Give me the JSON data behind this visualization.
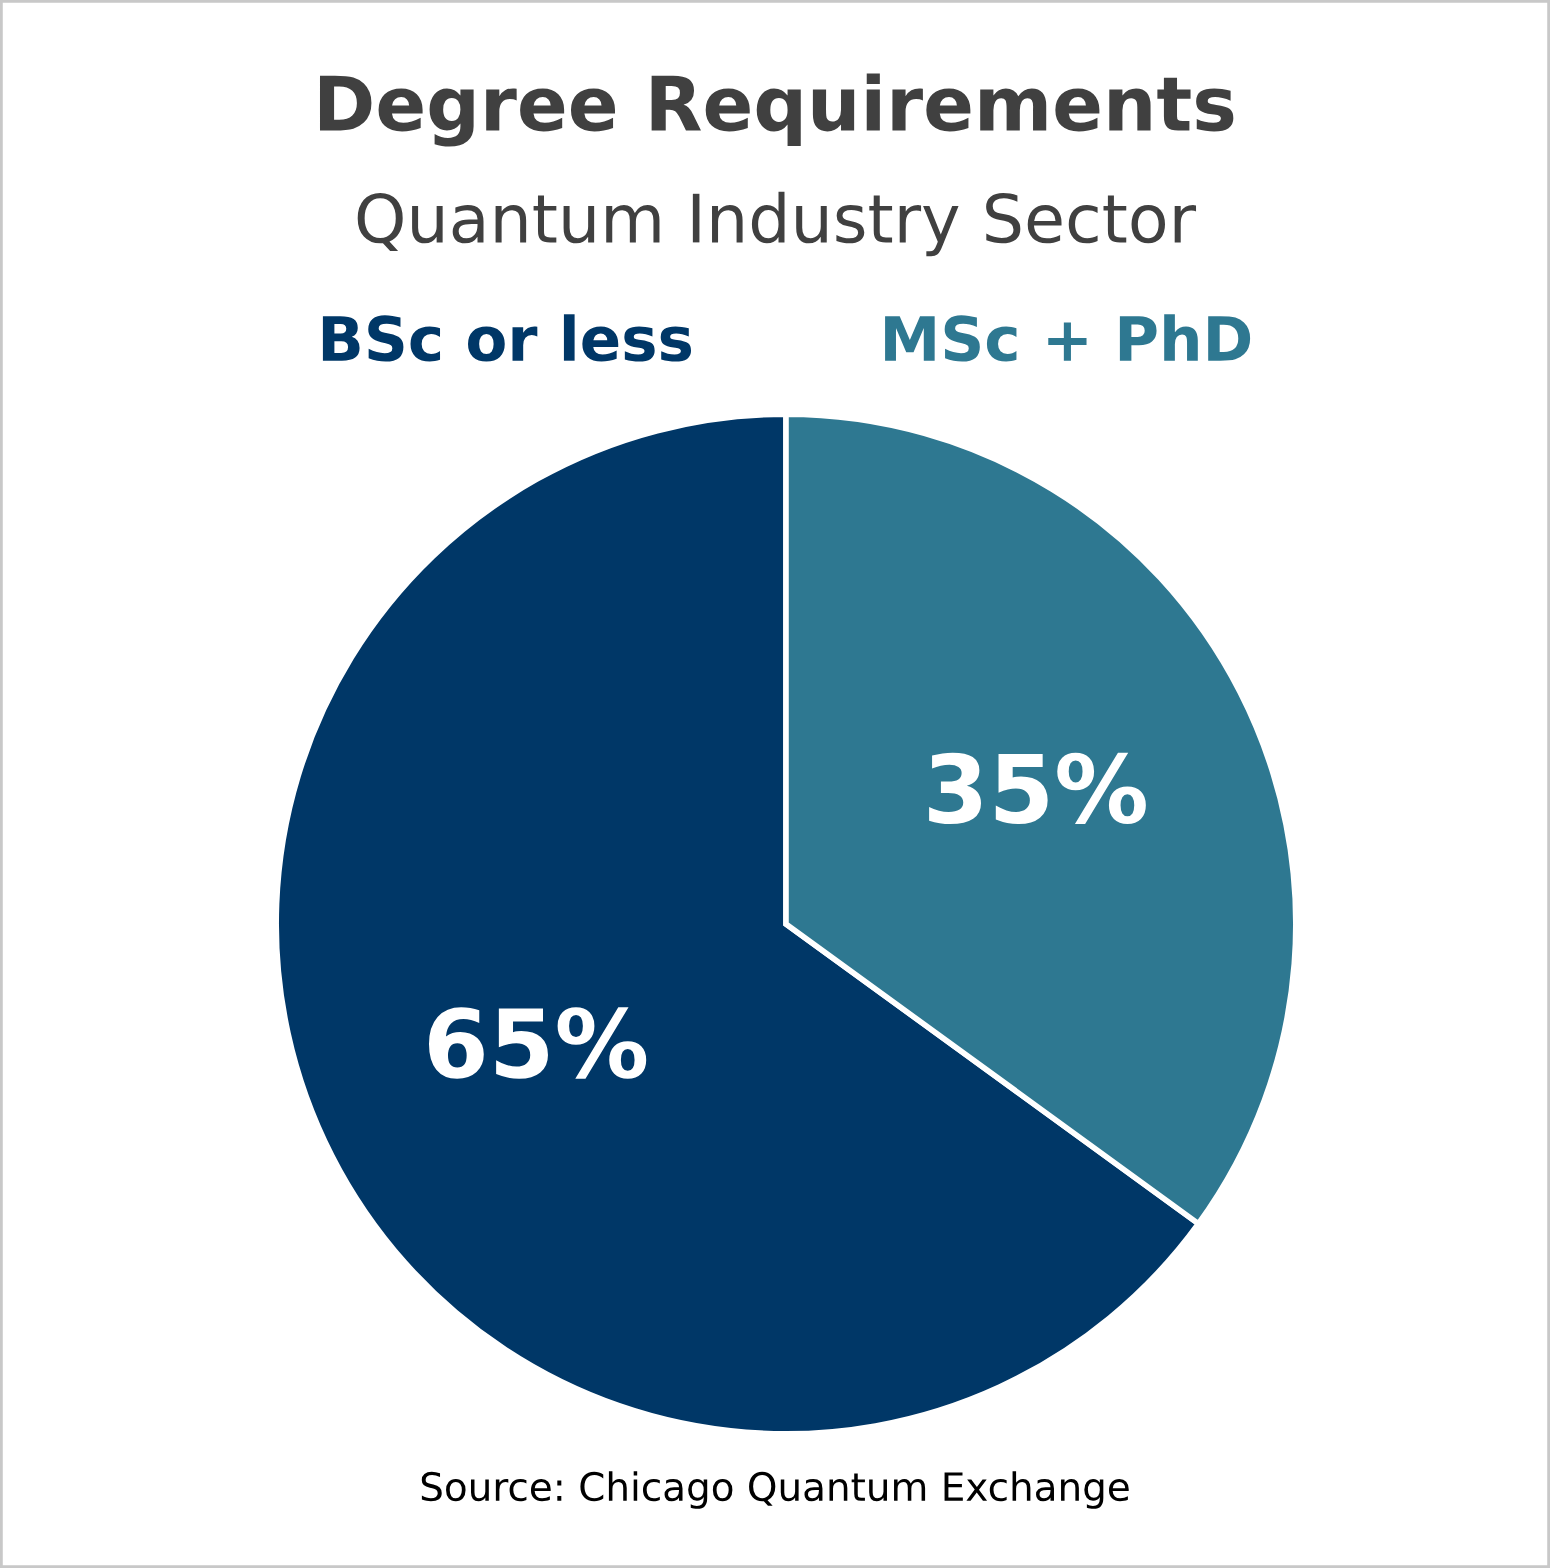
{
  "chart_data": {
    "type": "pie",
    "title": "Degree Requirements",
    "subtitle": "Quantum Industry Sector",
    "categories": [
      "BSc or less",
      "MSc + PhD"
    ],
    "values": [
      65,
      35
    ],
    "value_labels": [
      "65%",
      "35%"
    ],
    "colors": [
      "#003767",
      "#2e7891"
    ],
    "annotations": [
      "Source: Chicago Quantum Exchange"
    ],
    "legend": false
  }
}
